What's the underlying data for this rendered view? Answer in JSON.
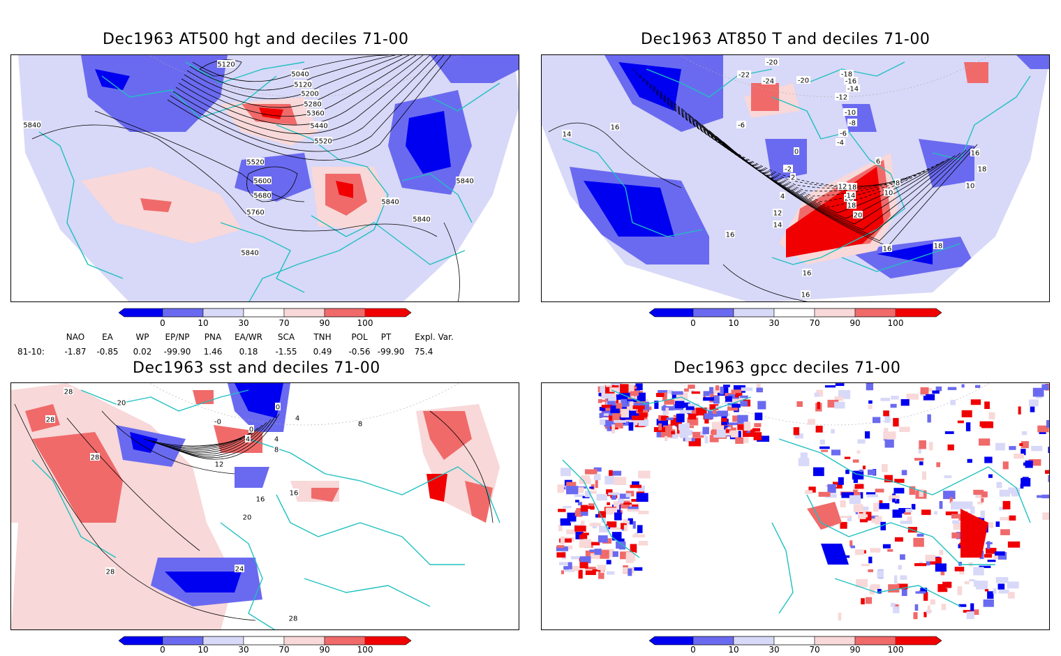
{
  "panels": [
    {
      "title": "Dec1963 AT500 hgt and deciles 71-00",
      "contour_labels": [
        "5120",
        "5040",
        "5120",
        "5200",
        "5280",
        "5360",
        "5440",
        "5520",
        "5520",
        "5600",
        "5680",
        "5760",
        "5840",
        "5840",
        "5840",
        "5840",
        "5840"
      ]
    },
    {
      "title": "Dec1963 AT850 T and deciles 71-00",
      "contour_labels": [
        "-20",
        "-22",
        "-24",
        "-20",
        "-18",
        "-16",
        "-14",
        "-12",
        "-10",
        "-8",
        "-6",
        "-4",
        "-2",
        "0",
        "2",
        "4",
        "6",
        "8",
        "10",
        "12",
        "14",
        "16",
        "18",
        "20",
        "16",
        "16",
        "14",
        "16",
        "18",
        "10",
        "12",
        "14",
        "18",
        "20",
        "18",
        "16",
        "16",
        "-6"
      ]
    },
    {
      "title": "Dec1963 sst and deciles 71-00",
      "contour_labels": [
        "28",
        "20",
        "28",
        "0",
        "-0",
        "0",
        "4",
        "4",
        "8",
        "12",
        "16",
        "16",
        "20",
        "24",
        "28",
        "28",
        "28",
        "4",
        "8"
      ]
    },
    {
      "title": "Dec1963 gpcc deciles 71-00",
      "contour_labels": []
    }
  ],
  "colorbar": {
    "ticks": [
      "0",
      "10",
      "30",
      "70",
      "90",
      "100"
    ],
    "colors": {
      "dark_blue": "#0000f0",
      "mid_blue": "#6a6af0",
      "light_blue": "#d8d8f8",
      "white": "#ffffff",
      "light_red": "#f8d8d8",
      "mid_red": "#f06a6a",
      "dark_red": "#f00000"
    }
  },
  "indices": {
    "headers": [
      "NAO",
      "EA",
      "WP",
      "EP/NP",
      "PNA",
      "EA/WR",
      "SCA",
      "TNH",
      "POL",
      "PT",
      "Expl. Var."
    ],
    "row_label": "81-10:",
    "values": [
      "-1.87",
      "-0.85",
      "0.02",
      "-99.90",
      "1.46",
      "0.18",
      "-1.55",
      "0.49",
      "-0.56",
      "-99.90",
      "75.4"
    ]
  },
  "map_colors": {
    "coast": "#20c0c0",
    "grid": "#aaaaaa",
    "contour": "#000000"
  }
}
